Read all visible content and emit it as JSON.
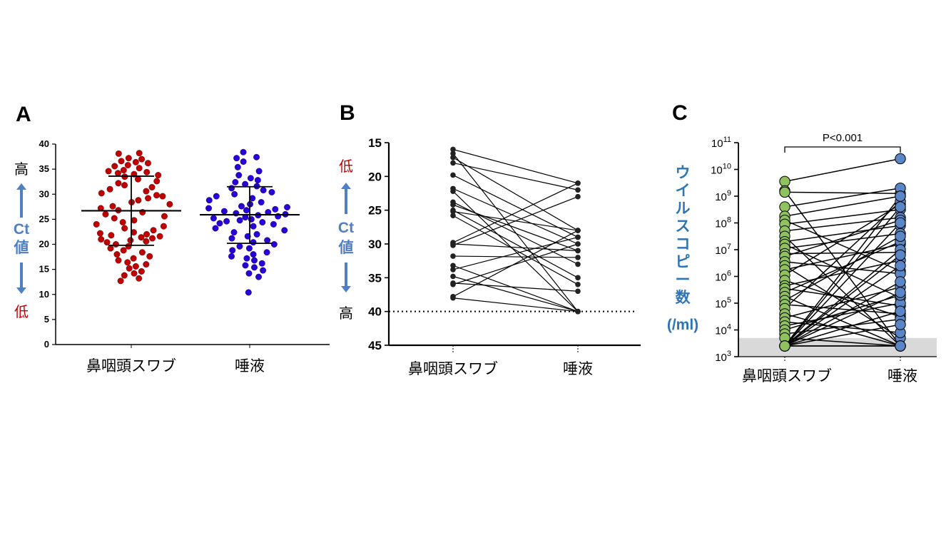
{
  "chart_data": [
    {
      "panel": "A",
      "type": "scatter",
      "categories": [
        "鼻咽頭スワブ",
        "唾液"
      ],
      "ylim": [
        0,
        40
      ],
      "yticks": [
        0,
        5,
        10,
        15,
        20,
        25,
        30,
        35,
        40
      ],
      "y_annotations": {
        "top": "高",
        "middle": "Ct\n値",
        "bottom": "低"
      },
      "series": [
        {
          "category": "鼻咽頭スワブ",
          "color": "#c00000",
          "mean": 26.7,
          "sd_upper": 33.6,
          "sd_lower": 19.8,
          "values": [
            38.2,
            38.1,
            37.2,
            37.0,
            36.6,
            36.4,
            36.2,
            35.8,
            35.6,
            35.2,
            34.8,
            34.6,
            34.4,
            34.2,
            34.0,
            33.8,
            33.5,
            33.0,
            32.6,
            32.2,
            31.8,
            31.4,
            31.0,
            30.6,
            30.2,
            29.8,
            29.6,
            29.2,
            28.8,
            28.4,
            28.0,
            27.6,
            27.2,
            26.8,
            26.4,
            26.0,
            25.6,
            25.2,
            24.8,
            24.4,
            24.0,
            23.6,
            23.2,
            22.8,
            22.4,
            22.2,
            22.0,
            21.8,
            21.6,
            21.4,
            21.2,
            21.0,
            20.8,
            20.6,
            20.4,
            20.0,
            19.6,
            19.2,
            18.8,
            18.4,
            18.0,
            17.6,
            17.2,
            16.8,
            16.4,
            16.0,
            15.6,
            15.2,
            14.6,
            14.2,
            13.8,
            13.2,
            12.7
          ]
        },
        {
          "category": "唾液",
          "color": "#2a00d8",
          "mean": 25.9,
          "sd_upper": 31.5,
          "sd_lower": 20.2,
          "values": [
            38.4,
            37.4,
            37.2,
            36.5,
            35.4,
            34.6,
            33.8,
            33.2,
            32.8,
            32.4,
            32.0,
            31.6,
            31.2,
            30.8,
            30.4,
            30.0,
            29.6,
            29.2,
            28.8,
            28.4,
            28.0,
            27.6,
            27.4,
            27.2,
            27.0,
            26.8,
            26.6,
            26.4,
            26.2,
            26.0,
            25.8,
            25.6,
            25.4,
            25.2,
            25.0,
            24.8,
            24.6,
            24.4,
            24.2,
            24.0,
            23.6,
            23.2,
            22.8,
            22.4,
            22.0,
            21.6,
            21.2,
            20.8,
            20.4,
            20.0,
            19.6,
            19.2,
            18.8,
            18.4,
            18.0,
            17.6,
            17.2,
            16.8,
            16.2,
            15.8,
            15.4,
            14.8,
            14.2,
            13.5,
            10.4
          ]
        }
      ]
    },
    {
      "panel": "B",
      "type": "line",
      "categories": [
        "鼻咽頭スワブ",
        "唾液"
      ],
      "ylim": [
        45,
        15
      ],
      "yticks": [
        15,
        20,
        25,
        30,
        35,
        40,
        45
      ],
      "y_inverted": true,
      "reference_line": 40,
      "y_annotations": {
        "top": "低",
        "middle": "Ct\n値",
        "bottom": "高"
      },
      "pairs": [
        [
          16.0,
          21.0
        ],
        [
          16.6,
          40.0
        ],
        [
          17.2,
          28.0
        ],
        [
          18.0,
          22.0
        ],
        [
          19.8,
          29.0
        ],
        [
          21.8,
          30.0
        ],
        [
          22.2,
          40.0
        ],
        [
          23.8,
          33.0
        ],
        [
          24.2,
          31.0
        ],
        [
          25.0,
          35.0
        ],
        [
          25.2,
          28.0
        ],
        [
          25.8,
          36.0
        ],
        [
          29.8,
          21.0
        ],
        [
          30.0,
          31.0
        ],
        [
          30.2,
          23.0
        ],
        [
          31.8,
          32.0
        ],
        [
          33.2,
          40.0
        ],
        [
          33.8,
          29.0
        ],
        [
          34.8,
          40.0
        ],
        [
          35.8,
          37.0
        ],
        [
          36.0,
          30.0
        ],
        [
          37.8,
          28.0
        ],
        [
          38.0,
          40.0
        ]
      ]
    },
    {
      "panel": "C",
      "type": "line",
      "categories": [
        "鼻咽頭スワブ",
        "唾液"
      ],
      "yscale": "log",
      "ylim": [
        1000,
        100000000000
      ],
      "yticks": [
        {
          "base": "10",
          "exp": "3"
        },
        {
          "base": "10",
          "exp": "4"
        },
        {
          "base": "10",
          "exp": "5"
        },
        {
          "base": "10",
          "exp": "6"
        },
        {
          "base": "10",
          "exp": "7"
        },
        {
          "base": "10",
          "exp": "8"
        },
        {
          "base": "10",
          "exp": "9"
        },
        {
          "base": "10",
          "exp": "10"
        },
        {
          "base": "10",
          "exp": "11"
        }
      ],
      "ylabel": "ウイルスコピー数\n(/ml)",
      "detection_limit": 5000,
      "annotation": "P<0.001",
      "colors": {
        "swab": "#8fc15e",
        "saliva": "#5b86c5"
      },
      "log10_pairs": [
        [
          9.55,
          10.4
        ],
        [
          9.2,
          3.4
        ],
        [
          9.15,
          9.1
        ],
        [
          8.6,
          9.3
        ],
        [
          8.25,
          9.0
        ],
        [
          8.1,
          6.2
        ],
        [
          7.95,
          8.5
        ],
        [
          7.7,
          8.2
        ],
        [
          7.5,
          3.4
        ],
        [
          7.3,
          7.9
        ],
        [
          7.2,
          5.2
        ],
        [
          7.05,
          7.6
        ],
        [
          6.85,
          6.9
        ],
        [
          6.75,
          8.1
        ],
        [
          6.55,
          6.1
        ],
        [
          6.4,
          3.7
        ],
        [
          6.25,
          7.2
        ],
        [
          6.05,
          8.7
        ],
        [
          5.85,
          4.5
        ],
        [
          5.65,
          6.6
        ],
        [
          5.55,
          4.9
        ],
        [
          5.4,
          7.3
        ],
        [
          5.25,
          3.4
        ],
        [
          5.1,
          7.5
        ],
        [
          4.95,
          4.6
        ],
        [
          4.8,
          8.8
        ],
        [
          4.6,
          3.4
        ],
        [
          4.45,
          5.6
        ],
        [
          4.3,
          3.9
        ],
        [
          4.15,
          5.0
        ],
        [
          4.0,
          5.3
        ],
        [
          3.85,
          4.4
        ],
        [
          3.7,
          3.4
        ],
        [
          3.4,
          8.6
        ],
        [
          3.4,
          3.4
        ],
        [
          3.4,
          6.4
        ],
        [
          3.4,
          7.0
        ],
        [
          3.4,
          5.8
        ],
        [
          3.4,
          4.2
        ],
        [
          3.4,
          8.0
        ],
        [
          3.4,
          9.0
        ],
        [
          3.4,
          4.7
        ],
        [
          3.4,
          5.4
        ],
        [
          3.4,
          3.4
        ],
        [
          3.4,
          6.8
        ]
      ]
    }
  ]
}
